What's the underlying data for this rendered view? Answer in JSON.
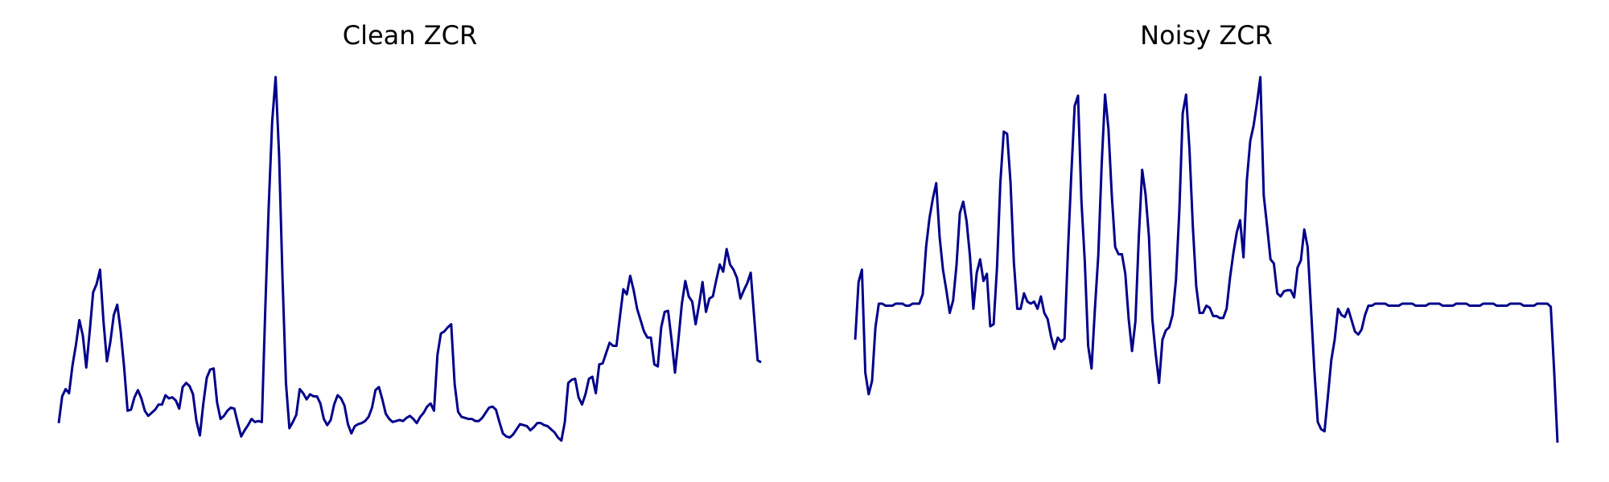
{
  "chart_data": [
    {
      "type": "line",
      "title": "Clean ZCR",
      "color": "#00008b",
      "ylim": [
        0,
        355
      ],
      "values": [
        19,
        45,
        52,
        48,
        75,
        95,
        119,
        104,
        73,
        108,
        146,
        154,
        168,
        118,
        79,
        98,
        124,
        134,
        108,
        73,
        31,
        32,
        44,
        51,
        43,
        31,
        26,
        29,
        32,
        37,
        37,
        46,
        43,
        44,
        41,
        33,
        54,
        58,
        55,
        47,
        21,
        7,
        38,
        63,
        71,
        72,
        39,
        23,
        26,
        31,
        34,
        33,
        19,
        6,
        12,
        17,
        23,
        20,
        21,
        20,
        130,
        230,
        312,
        355,
        280,
        160,
        58,
        14,
        20,
        27,
        52,
        48,
        42,
        47,
        45,
        45,
        38,
        23,
        17,
        22,
        37,
        46,
        43,
        36,
        18,
        9,
        16,
        18,
        19,
        21,
        25,
        34,
        51,
        54,
        42,
        28,
        23,
        20,
        21,
        22,
        21,
        24,
        26,
        23,
        19,
        25,
        29,
        35,
        38,
        31,
        85,
        106,
        108,
        112,
        115,
        57,
        30,
        25,
        24,
        23,
        23,
        21,
        21,
        24,
        29,
        34,
        35,
        32,
        20,
        9,
        6,
        5,
        8,
        13,
        18,
        17,
        16,
        12,
        15,
        19,
        19,
        17,
        16,
        13,
        10,
        5,
        2,
        20,
        58,
        61,
        62,
        44,
        37,
        47,
        62,
        64,
        48,
        76,
        77,
        87,
        97,
        94,
        94,
        122,
        149,
        144,
        162,
        148,
        130,
        119,
        108,
        102,
        102,
        76,
        74,
        112,
        127,
        128,
        100,
        68,
        100,
        135,
        157,
        142,
        137,
        115,
        134,
        156,
        127,
        140,
        142,
        158,
        173,
        166,
        188,
        173,
        168,
        160,
        140,
        148,
        155,
        165,
        122,
        80,
        78
      ]
    },
    {
      "type": "line",
      "title": "Noisy ZCR",
      "color": "#00008b",
      "ylim": [
        0,
        355
      ],
      "values": [
        100,
        156,
        168,
        68,
        47,
        60,
        112,
        135,
        135,
        133,
        133,
        133,
        135,
        135,
        135,
        133,
        133,
        135,
        135,
        135,
        144,
        190,
        218,
        237,
        252,
        200,
        168,
        148,
        126,
        138,
        172,
        223,
        234,
        215,
        181,
        130,
        165,
        178,
        157,
        164,
        113,
        115,
        170,
        253,
        302,
        300,
        253,
        175,
        130,
        130,
        145,
        137,
        135,
        137,
        130,
        142,
        126,
        120,
        103,
        91,
        102,
        98,
        101,
        185,
        260,
        327,
        337,
        235,
        176,
        94,
        72,
        130,
        182,
        270,
        338,
        305,
        240,
        190,
        183,
        183,
        164,
        120,
        89,
        118,
        200,
        265,
        241,
        200,
        120,
        86,
        58,
        100,
        109,
        112,
        124,
        158,
        225,
        320,
        338,
        285,
        210,
        152,
        126,
        126,
        133,
        131,
        123,
        123,
        121,
        121,
        130,
        160,
        184,
        204,
        216,
        180,
        255,
        293,
        308,
        330,
        355,
        240,
        210,
        178,
        174,
        145,
        142,
        147,
        148,
        148,
        141,
        170,
        177,
        207,
        190,
        130,
        70,
        20,
        13,
        11,
        45,
        80,
        100,
        130,
        124,
        122,
        130,
        119,
        108,
        105,
        110,
        124,
        133,
        133,
        135,
        135,
        135,
        135,
        133,
        133,
        133,
        133,
        135,
        135,
        135,
        135,
        133,
        133,
        133,
        133,
        135,
        135,
        135,
        135,
        133,
        133,
        133,
        133,
        135,
        135,
        135,
        135,
        133,
        133,
        133,
        133,
        135,
        135,
        135,
        135,
        133,
        133,
        133,
        133,
        135,
        135,
        135,
        135,
        133,
        133,
        133,
        133,
        135,
        135,
        135,
        135,
        132,
        70,
        0
      ]
    }
  ]
}
